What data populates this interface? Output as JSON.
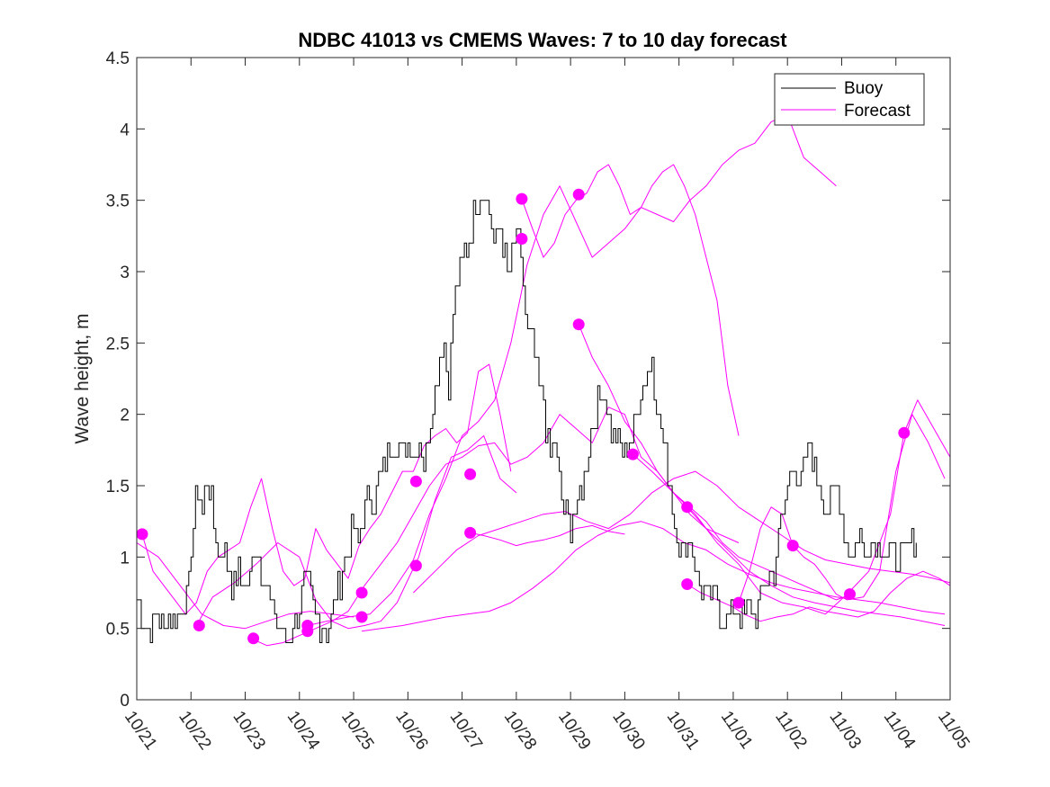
{
  "chart_data": {
    "type": "line",
    "title": "NDBC 41013 vs CMEMS Waves: 7 to 10 day forecast",
    "xlabel": "",
    "ylabel": "Wave height, m",
    "xlim": [
      0,
      15
    ],
    "ylim": [
      0,
      4.5
    ],
    "yticks": [
      0,
      0.5,
      1,
      1.5,
      2,
      2.5,
      3,
      3.5,
      4,
      4.5
    ],
    "ytick_labels": [
      "0",
      "0.5",
      "1",
      "1.5",
      "2",
      "2.5",
      "3",
      "3.5",
      "4",
      "4.5"
    ],
    "xtick_labels": [
      "10/21",
      "10/22",
      "10/23",
      "10/24",
      "10/25",
      "10/26",
      "10/27",
      "10/28",
      "10/29",
      "10/30",
      "10/31",
      "11/01",
      "11/02",
      "11/03",
      "11/04",
      "11/05"
    ],
    "x_unit": "days since 10/21",
    "grid": false,
    "legend": {
      "position": "top-right",
      "entries": [
        {
          "label": "Buoy",
          "color": "#000000"
        },
        {
          "label": "Forecast",
          "color": "#ff00ff"
        }
      ]
    },
    "colors": {
      "buoy": "#000000",
      "forecast": "#ff00ff"
    },
    "buoy": {
      "name": "Buoy",
      "x": [
        0.0,
        0.1,
        0.25,
        0.35,
        0.5,
        0.6,
        0.8,
        0.95,
        1.1,
        1.2,
        1.3,
        1.4,
        1.5,
        1.6,
        1.75,
        1.85,
        2.0,
        2.1,
        2.2,
        2.3,
        2.35,
        2.5,
        2.6,
        2.7,
        2.75,
        2.85,
        3.0,
        3.1,
        3.2,
        3.3,
        3.35,
        3.5,
        3.6,
        3.7,
        3.8,
        3.9,
        4.0,
        4.1,
        4.2,
        4.3,
        4.4,
        4.5,
        4.6,
        4.7,
        4.85,
        5.0,
        5.1,
        5.2,
        5.3,
        5.45,
        5.55,
        5.65,
        5.75,
        5.85,
        6.0,
        6.1,
        6.25,
        6.4,
        6.5,
        6.6,
        6.7,
        6.85,
        7.0,
        7.1,
        7.2,
        7.3,
        7.4,
        7.5,
        7.55,
        7.6,
        7.7,
        7.8,
        7.9,
        8.0,
        8.05,
        8.1,
        8.2,
        8.3,
        8.4,
        8.5,
        8.6,
        8.75,
        8.85,
        9.0,
        9.1,
        9.25,
        9.35,
        9.5,
        9.6,
        9.75,
        9.9,
        10.0,
        10.1,
        10.2,
        10.3,
        10.4,
        10.5,
        10.6,
        10.7,
        10.75,
        10.85,
        11.0,
        11.1,
        11.2,
        11.3,
        11.4,
        11.5,
        11.6,
        11.75,
        11.85,
        12.0,
        12.1,
        12.2,
        12.3,
        12.4,
        12.5,
        12.6,
        12.7,
        12.8,
        12.9,
        13.0,
        13.1,
        13.2,
        13.3,
        13.4,
        13.5,
        13.6,
        13.75,
        13.85,
        14.0,
        14.1,
        14.2,
        14.3,
        14.4
      ],
      "values": [
        0.75,
        0.6,
        0.5,
        0.6,
        0.5,
        0.6,
        0.6,
        0.8,
        1.5,
        1.3,
        1.6,
        1.3,
        1.0,
        1.1,
        0.8,
        0.9,
        0.8,
        0.9,
        1.1,
        0.9,
        0.85,
        0.65,
        0.5,
        0.45,
        0.4,
        0.5,
        0.6,
        0.9,
        0.7,
        0.6,
        0.55,
        0.5,
        0.6,
        0.75,
        0.9,
        1.1,
        1.2,
        1.1,
        1.35,
        1.45,
        1.4,
        1.6,
        1.7,
        1.8,
        1.75,
        1.8,
        1.7,
        1.9,
        1.6,
        2.1,
        2.3,
        2.6,
        2.2,
        2.8,
        3.1,
        3.2,
        3.45,
        3.6,
        3.4,
        3.2,
        3.35,
        2.9,
        3.3,
        3.0,
        2.6,
        2.5,
        2.2,
        2.1,
        1.9,
        1.7,
        1.8,
        1.5,
        1.3,
        1.2,
        1.4,
        1.3,
        1.5,
        1.7,
        1.9,
        2.1,
        2.2,
        1.9,
        1.8,
        1.7,
        1.8,
        2.1,
        2.2,
        2.4,
        2.0,
        1.7,
        1.3,
        1.1,
        1.0,
        1.2,
        0.9,
        0.8,
        0.7,
        0.75,
        0.7,
        0.6,
        0.6,
        0.6,
        0.6,
        0.6,
        0.65,
        0.6,
        0.7,
        0.8,
        0.9,
        1.2,
        1.5,
        1.7,
        1.4,
        1.6,
        1.8,
        1.6,
        1.5,
        1.3,
        1.4,
        1.5,
        1.3,
        1.1,
        1.0,
        1.2,
        1.0,
        1.1,
        1.05,
        1.1,
        1.05,
        1.0,
        1.02,
        1.08,
        1.1,
        1.09
      ],
      "noise_amplitude": 0.1
    },
    "forecast_lines": [
      {
        "x": [
          0.1,
          0.3,
          0.5,
          0.7,
          0.9,
          1.1,
          1.3,
          1.5,
          1.7,
          1.9,
          2.1,
          2.3,
          2.5,
          2.7,
          2.9,
          3.1,
          3.3,
          3.5,
          3.7,
          3.9,
          4.1,
          4.3,
          4.5,
          4.7,
          4.9,
          5.1,
          5.3,
          5.5,
          5.7,
          5.9,
          6.1,
          6.3,
          6.5,
          6.7,
          6.9
        ],
        "values": [
          1.16,
          0.9,
          0.8,
          0.7,
          0.6,
          0.68,
          0.9,
          1.0,
          1.05,
          1.1,
          1.35,
          1.55,
          1.2,
          0.9,
          0.8,
          0.85,
          1.2,
          1.05,
          0.95,
          0.85,
          1.08,
          1.2,
          1.3,
          1.45,
          1.6,
          1.6,
          1.78,
          1.85,
          1.9,
          1.8,
          1.87,
          2.3,
          2.35,
          2.0,
          1.6
        ]
      },
      {
        "x": [
          1.1,
          1.4,
          1.8,
          2.2,
          2.6,
          3.0,
          3.3,
          3.6,
          3.9,
          4.2,
          4.5,
          4.8,
          5.2,
          5.5,
          5.8,
          6.1,
          6.4,
          6.7,
          7.0
        ],
        "values": [
          0.52,
          0.72,
          0.82,
          0.95,
          1.1,
          1.0,
          0.7,
          0.55,
          0.5,
          0.52,
          0.55,
          0.68,
          1.0,
          1.4,
          1.7,
          1.75,
          1.85,
          1.55,
          1.45
        ]
      },
      {
        "x": [
          2.1,
          2.4,
          2.7,
          3.0,
          3.3,
          3.6,
          3.9,
          4.2,
          4.5,
          4.8,
          5.1,
          5.4,
          5.7,
          6.0,
          6.3,
          6.6,
          6.9,
          7.2,
          7.5,
          7.8,
          8.1,
          8.4,
          8.7,
          9.0,
          9.3,
          9.6,
          9.9,
          10.2,
          10.5,
          10.8,
          11.1
        ],
        "values": [
          0.43,
          0.38,
          0.4,
          0.45,
          0.5,
          0.55,
          0.62,
          0.8,
          0.95,
          1.1,
          1.3,
          1.5,
          1.65,
          1.7,
          1.78,
          1.8,
          1.65,
          1.7,
          1.8,
          2.0,
          1.9,
          1.8,
          2.05,
          2.0,
          1.7,
          1.6,
          1.45,
          1.3,
          1.2,
          1.15,
          1.1
        ]
      },
      {
        "x": [
          3.15,
          3.5,
          3.9,
          4.3,
          4.7,
          5.1,
          5.4,
          5.7,
          6.0,
          6.3,
          6.6,
          6.9,
          7.2,
          7.5,
          7.8,
          8.1,
          8.4,
          8.7,
          9.0,
          9.3,
          9.6,
          9.9,
          10.2,
          10.5,
          10.8,
          11.1,
          11.4,
          11.7,
          12.0,
          12.3,
          12.6,
          12.9
        ],
        "values": [
          0.52,
          0.55,
          0.58,
          0.6,
          0.75,
          0.98,
          1.3,
          1.55,
          1.85,
          1.95,
          2.1,
          2.5,
          3.05,
          3.4,
          3.6,
          3.35,
          3.1,
          3.2,
          3.3,
          3.45,
          3.4,
          3.35,
          3.5,
          3.6,
          3.75,
          3.85,
          3.9,
          4.05,
          4.1,
          3.8,
          3.7,
          3.6
        ]
      },
      {
        "x": [
          4.15,
          4.5,
          4.9,
          5.3,
          5.7,
          6.1,
          6.5,
          6.9,
          7.3,
          7.7,
          8.1,
          8.5,
          8.9,
          9.3,
          9.7,
          10.1,
          10.5,
          10.9,
          11.3,
          11.7,
          12.1,
          12.5,
          12.9,
          13.3,
          13.7,
          14.1,
          14.5,
          14.9
        ],
        "values": [
          0.48,
          0.5,
          0.52,
          0.55,
          0.58,
          0.6,
          0.62,
          0.68,
          0.78,
          0.9,
          1.05,
          1.15,
          1.22,
          1.25,
          1.2,
          1.1,
          1.05,
          0.95,
          0.88,
          0.82,
          0.78,
          0.75,
          0.72,
          0.7,
          0.68,
          0.65,
          0.62,
          0.6
        ]
      },
      {
        "x": [
          0.0,
          0.4,
          0.8,
          1.2,
          1.6,
          2.0,
          2.4,
          2.8,
          3.2,
          3.6,
          4.0
        ],
        "values": [
          1.1,
          1.0,
          0.8,
          0.6,
          0.52,
          0.5,
          0.55,
          0.6,
          0.62,
          0.6,
          0.58
        ]
      },
      {
        "x": [
          5.1,
          5.5,
          5.9,
          6.3,
          6.7,
          7.1,
          7.5,
          7.9,
          8.3,
          8.7,
          9.1,
          9.5,
          9.9,
          10.3,
          10.7,
          11.1,
          11.5,
          11.9,
          12.3,
          12.7,
          13.1,
          13.5,
          13.9,
          14.3,
          14.7,
          15.0
        ],
        "values": [
          0.75,
          0.9,
          1.05,
          1.15,
          1.2,
          1.25,
          1.3,
          1.32,
          1.25,
          1.2,
          1.3,
          1.45,
          1.55,
          1.6,
          1.5,
          1.35,
          1.25,
          1.15,
          1.05,
          0.98,
          0.95,
          0.92,
          0.9,
          0.88,
          0.85,
          0.82
        ]
      },
      {
        "x": [
          6.15,
          6.4,
          6.7,
          7.0,
          7.2,
          7.5,
          7.8,
          8.1,
          8.4,
          8.7,
          9.0
        ],
        "values": [
          1.17,
          1.15,
          1.12,
          1.08,
          1.1,
          1.12,
          1.15,
          1.2,
          1.22,
          1.18,
          1.16
        ]
      },
      {
        "x": [
          7.1,
          7.3,
          7.5,
          7.7,
          7.9,
          8.1,
          8.3,
          8.5,
          8.7,
          8.9,
          9.1,
          9.3,
          9.5,
          9.7,
          9.9,
          10.1,
          10.3,
          10.5,
          10.7,
          10.9,
          11.1
        ],
        "values": [
          3.51,
          3.3,
          3.1,
          3.2,
          3.4,
          3.5,
          3.55,
          3.7,
          3.75,
          3.6,
          3.4,
          3.45,
          3.6,
          3.7,
          3.75,
          3.6,
          3.4,
          3.1,
          2.8,
          2.2,
          1.85
        ]
      },
      {
        "x": [
          8.15,
          8.4,
          8.7,
          9.0,
          9.3,
          9.6,
          9.9,
          10.2,
          10.5,
          10.8,
          11.1,
          11.4,
          11.7,
          12.0,
          12.3,
          12.6,
          12.9,
          13.2
        ],
        "values": [
          2.63,
          2.4,
          2.2,
          1.95,
          1.8,
          1.6,
          1.45,
          1.35,
          1.25,
          1.1,
          1.0,
          0.95,
          0.9,
          0.85,
          0.8,
          0.75,
          0.7,
          0.74
        ]
      },
      {
        "x": [
          9.15,
          9.5,
          9.9,
          10.3,
          10.7,
          11.1,
          11.5,
          11.9,
          12.3,
          12.7,
          13.1,
          13.5,
          13.9,
          14.15,
          14.4,
          14.7,
          15.0
        ],
        "values": [
          1.72,
          1.6,
          1.45,
          1.3,
          1.1,
          0.95,
          0.75,
          0.68,
          0.65,
          0.6,
          0.74,
          0.9,
          1.3,
          1.87,
          2.1,
          1.9,
          1.7
        ]
      },
      {
        "x": [
          10.15,
          10.5,
          10.9,
          11.3,
          11.7,
          12.1,
          12.5,
          12.9,
          13.3,
          13.7,
          14.1,
          14.5,
          14.9
        ],
        "values": [
          1.35,
          1.2,
          1.05,
          0.9,
          0.8,
          0.72,
          0.68,
          0.65,
          0.62,
          0.6,
          0.58,
          0.55,
          0.52
        ]
      },
      {
        "x": [
          10.15,
          10.4,
          10.7,
          11.0,
          11.2,
          11.5,
          11.8,
          12.1,
          12.4,
          12.7,
          13.0,
          13.3,
          13.6,
          13.9,
          14.2,
          14.5,
          14.8,
          15.0
        ],
        "values": [
          0.81,
          0.75,
          0.7,
          0.65,
          0.6,
          0.55,
          0.58,
          0.6,
          0.65,
          0.62,
          0.6,
          0.58,
          0.62,
          0.75,
          0.85,
          0.9,
          0.85,
          0.8
        ]
      },
      {
        "x": [
          11.1,
          11.3,
          11.5,
          11.7,
          11.9,
          12.1,
          12.3,
          12.5,
          12.7,
          12.9,
          13.1,
          13.4,
          13.7,
          14.0,
          14.3,
          14.6,
          14.9
        ],
        "values": [
          0.68,
          0.9,
          1.2,
          1.35,
          1.3,
          1.08,
          1.0,
          0.95,
          0.85,
          0.74,
          0.7,
          0.72,
          0.9,
          1.6,
          2.0,
          1.8,
          1.55
        ]
      }
    ],
    "forecast_markers": {
      "x": [
        0.1,
        1.15,
        2.15,
        3.15,
        3.15,
        4.15,
        4.15,
        5.15,
        5.15,
        6.15,
        6.15,
        7.1,
        7.1,
        8.15,
        8.15,
        9.15,
        10.15,
        10.15,
        11.1,
        12.1,
        13.15,
        14.15
      ],
      "values": [
        1.16,
        0.52,
        0.43,
        0.52,
        0.48,
        0.75,
        0.58,
        1.53,
        0.94,
        1.58,
        1.17,
        3.51,
        3.23,
        3.54,
        2.63,
        1.72,
        1.35,
        0.81,
        0.68,
        1.08,
        0.74,
        1.87
      ]
    }
  }
}
